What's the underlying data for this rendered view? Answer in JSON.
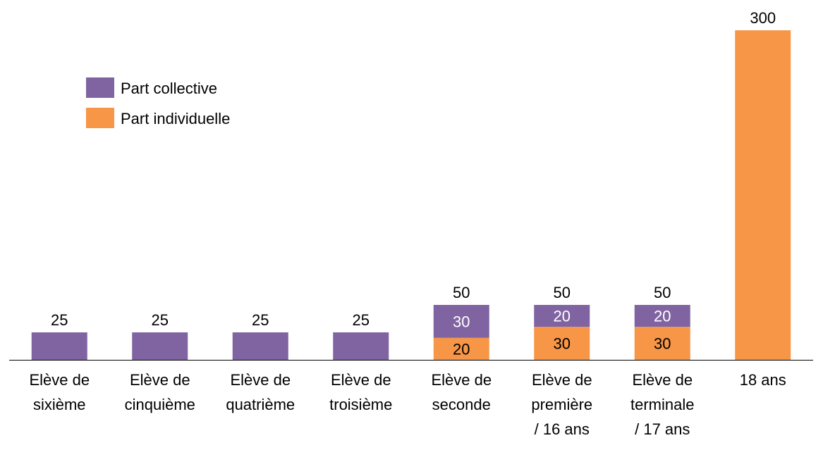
{
  "chart_data": {
    "type": "bar",
    "stacked": true,
    "title": "",
    "xlabel": "",
    "ylabel": "",
    "ylim": [
      0,
      300
    ],
    "grid": false,
    "legend_position": "top-left",
    "categories": [
      [
        "Elève de",
        "sixième"
      ],
      [
        "Elève de",
        "cinquième"
      ],
      [
        "Elève de",
        "quatrième"
      ],
      [
        "Elève de",
        "troisième"
      ],
      [
        "Elève de",
        "seconde"
      ],
      [
        "Elève de",
        "première",
        "/ 16 ans"
      ],
      [
        "Elève de",
        "terminale",
        "/ 17 ans"
      ],
      [
        "18 ans"
      ]
    ],
    "series": [
      {
        "name": "Part individuelle",
        "color": "#f79646",
        "values": [
          0,
          0,
          0,
          0,
          20,
          30,
          30,
          300
        ],
        "show_labels": [
          false,
          false,
          false,
          false,
          true,
          true,
          true,
          false
        ],
        "label_color": "#000000"
      },
      {
        "name": "Part collective",
        "color": "#8064a2",
        "values": [
          25,
          25,
          25,
          25,
          30,
          20,
          20,
          0
        ],
        "show_labels": [
          false,
          false,
          false,
          false,
          true,
          true,
          true,
          false
        ],
        "label_color": "#ffffff"
      }
    ],
    "totals": [
      25,
      25,
      25,
      25,
      50,
      50,
      50,
      300
    ],
    "legend_order": [
      "Part collective",
      "Part individuelle"
    ]
  }
}
